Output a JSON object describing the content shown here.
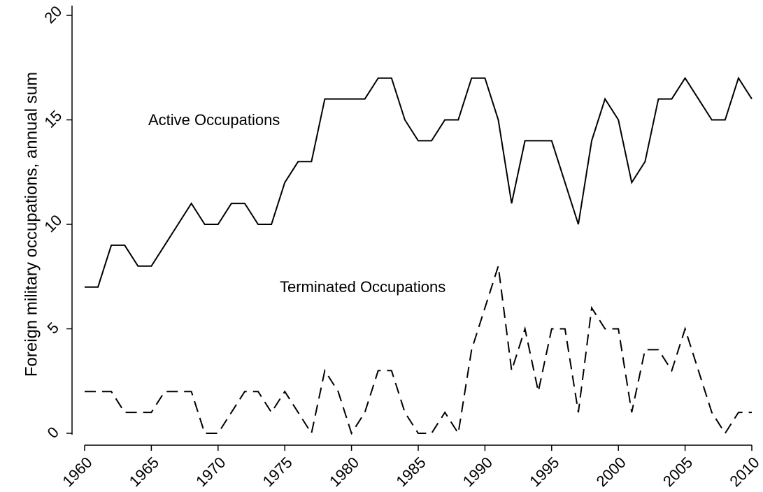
{
  "chart_data": {
    "type": "line",
    "y_label": "Foreign military occupations, annual sum",
    "x": [
      1960,
      1961,
      1962,
      1963,
      1964,
      1965,
      1966,
      1967,
      1968,
      1969,
      1970,
      1971,
      1972,
      1973,
      1974,
      1975,
      1976,
      1977,
      1978,
      1979,
      1980,
      1981,
      1982,
      1983,
      1984,
      1985,
      1986,
      1987,
      1988,
      1989,
      1990,
      1991,
      1992,
      1993,
      1994,
      1995,
      1996,
      1997,
      1998,
      1999,
      2000,
      2001,
      2002,
      2003,
      2004,
      2005,
      2006,
      2007,
      2008,
      2009,
      2010
    ],
    "series": [
      {
        "name": "Active Occupations",
        "color": "#000000",
        "style": "solid",
        "values": [
          7,
          7,
          9,
          9,
          8,
          8,
          9,
          10,
          11,
          10,
          10,
          11,
          11,
          10,
          10,
          12,
          13,
          13,
          16,
          16,
          16,
          16,
          17,
          17,
          15,
          14,
          14,
          15,
          15,
          17,
          17,
          15,
          11,
          14,
          14,
          14,
          12,
          10,
          14,
          16,
          15,
          12,
          13,
          16,
          16,
          17,
          16,
          15,
          15,
          17,
          16
        ]
      },
      {
        "name": "Terminated Occupations",
        "color": "#000000",
        "style": "dashed",
        "values": [
          2,
          2,
          2,
          1,
          1,
          1,
          2,
          2,
          2,
          0,
          0,
          1,
          2,
          2,
          1,
          2,
          1,
          0,
          3,
          2,
          0,
          1,
          3,
          3,
          1,
          0,
          0,
          1,
          0,
          4,
          6,
          8,
          3,
          5,
          2,
          5,
          5,
          1,
          6,
          5,
          5,
          1,
          4,
          4,
          3,
          5,
          3,
          1,
          0,
          1,
          1
        ]
      }
    ],
    "xlim": [
      1960,
      2010
    ],
    "xticks": [
      1960,
      1965,
      1970,
      1975,
      1980,
      1985,
      1990,
      1995,
      2000,
      2005,
      2010
    ],
    "ylim": [
      0,
      20
    ],
    "yticks": [
      0,
      5,
      10,
      15,
      20
    ],
    "grid": false
  }
}
